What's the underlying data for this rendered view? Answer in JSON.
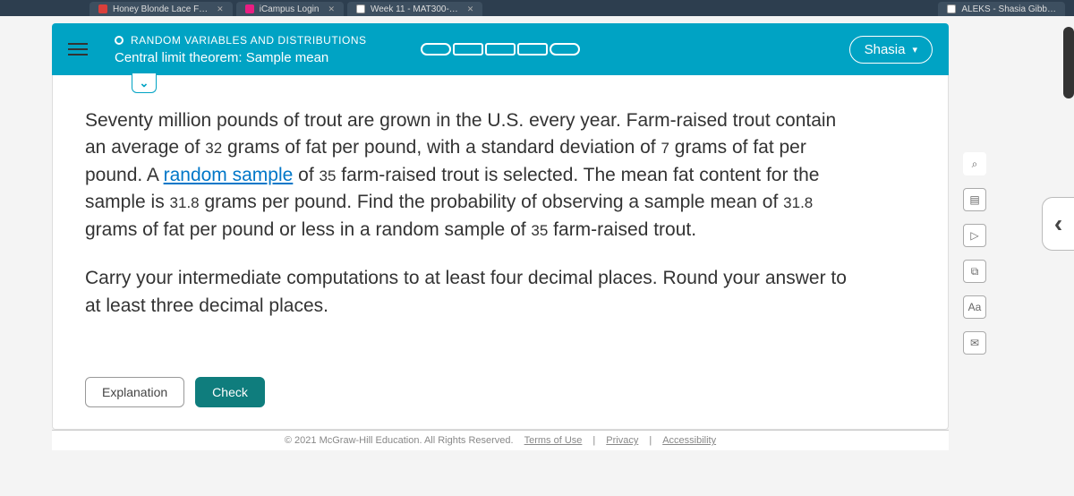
{
  "tabs": [
    {
      "label": "Honey Blonde Lace F…"
    },
    {
      "label": "iCampus Login"
    },
    {
      "label": "Week 11 - MAT300-…"
    },
    {
      "label": "ALEKS - Shasia Gibb…"
    }
  ],
  "header": {
    "category": "RANDOM VARIABLES AND DISTRIBUTIONS",
    "topic": "Central limit theorem: Sample mean",
    "user": "Shasia"
  },
  "question": {
    "p1a": "Seventy million pounds of trout are grown in the U.S. every year. Farm-raised trout contain an average of ",
    "v1": "32",
    "p1b": " grams of fat per pound, with a standard deviation of ",
    "v2": "7",
    "p1c": " grams of fat per pound. A ",
    "link": "random sample",
    "p1d": " of ",
    "v3": "35",
    "p1e": " farm-raised trout is selected. The mean fat content for the sample is ",
    "v4": "31.8",
    "p1f": " grams per pound. Find the probability of observing a sample mean of ",
    "v5": "31.8",
    "p1g": " grams of fat per pound or less in a random sample of ",
    "v6": "35",
    "p1h": " farm-raised trout."
  },
  "instruction": "Carry your intermediate computations to at least four decimal places. Round your answer to at least three decimal places.",
  "buttons": {
    "explanation": "Explanation",
    "check": "Check"
  },
  "footer": {
    "copyright": "© 2021 McGraw-Hill Education. All Rights Reserved.",
    "terms": "Terms of Use",
    "privacy": "Privacy",
    "accessibility": "Accessibility"
  },
  "tools": {
    "search": "⌕",
    "calc": "▤",
    "play": "▷",
    "ref": "⧉",
    "aa": "Aa",
    "mail": "✉"
  }
}
